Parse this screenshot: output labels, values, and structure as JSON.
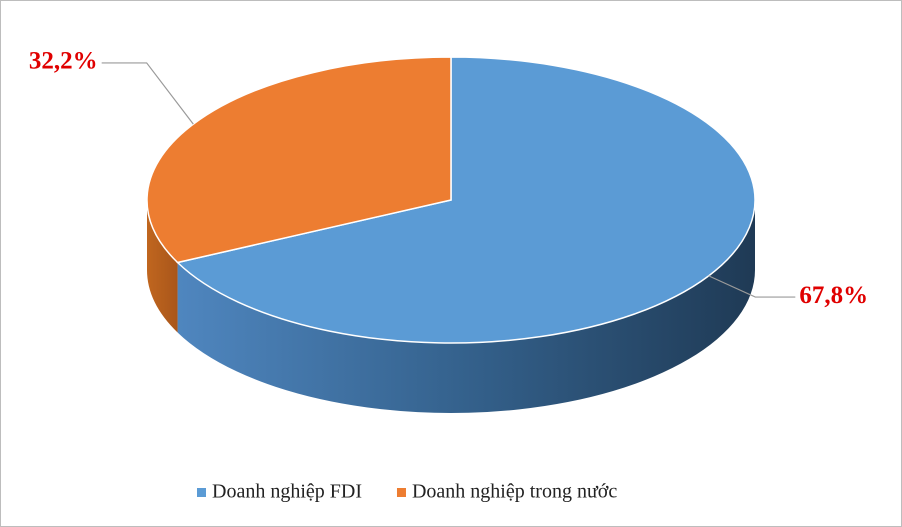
{
  "chart_data": {
    "type": "pie",
    "categories": [
      "Doanh nghiệp FDI",
      "Doanh nghiệp trong nước"
    ],
    "values": [
      67.8,
      32.2
    ],
    "value_labels": [
      "67,8%",
      "32,2%"
    ],
    "colors": [
      "#5b9bd5",
      "#ed7d31"
    ],
    "legend": "bottom"
  }
}
